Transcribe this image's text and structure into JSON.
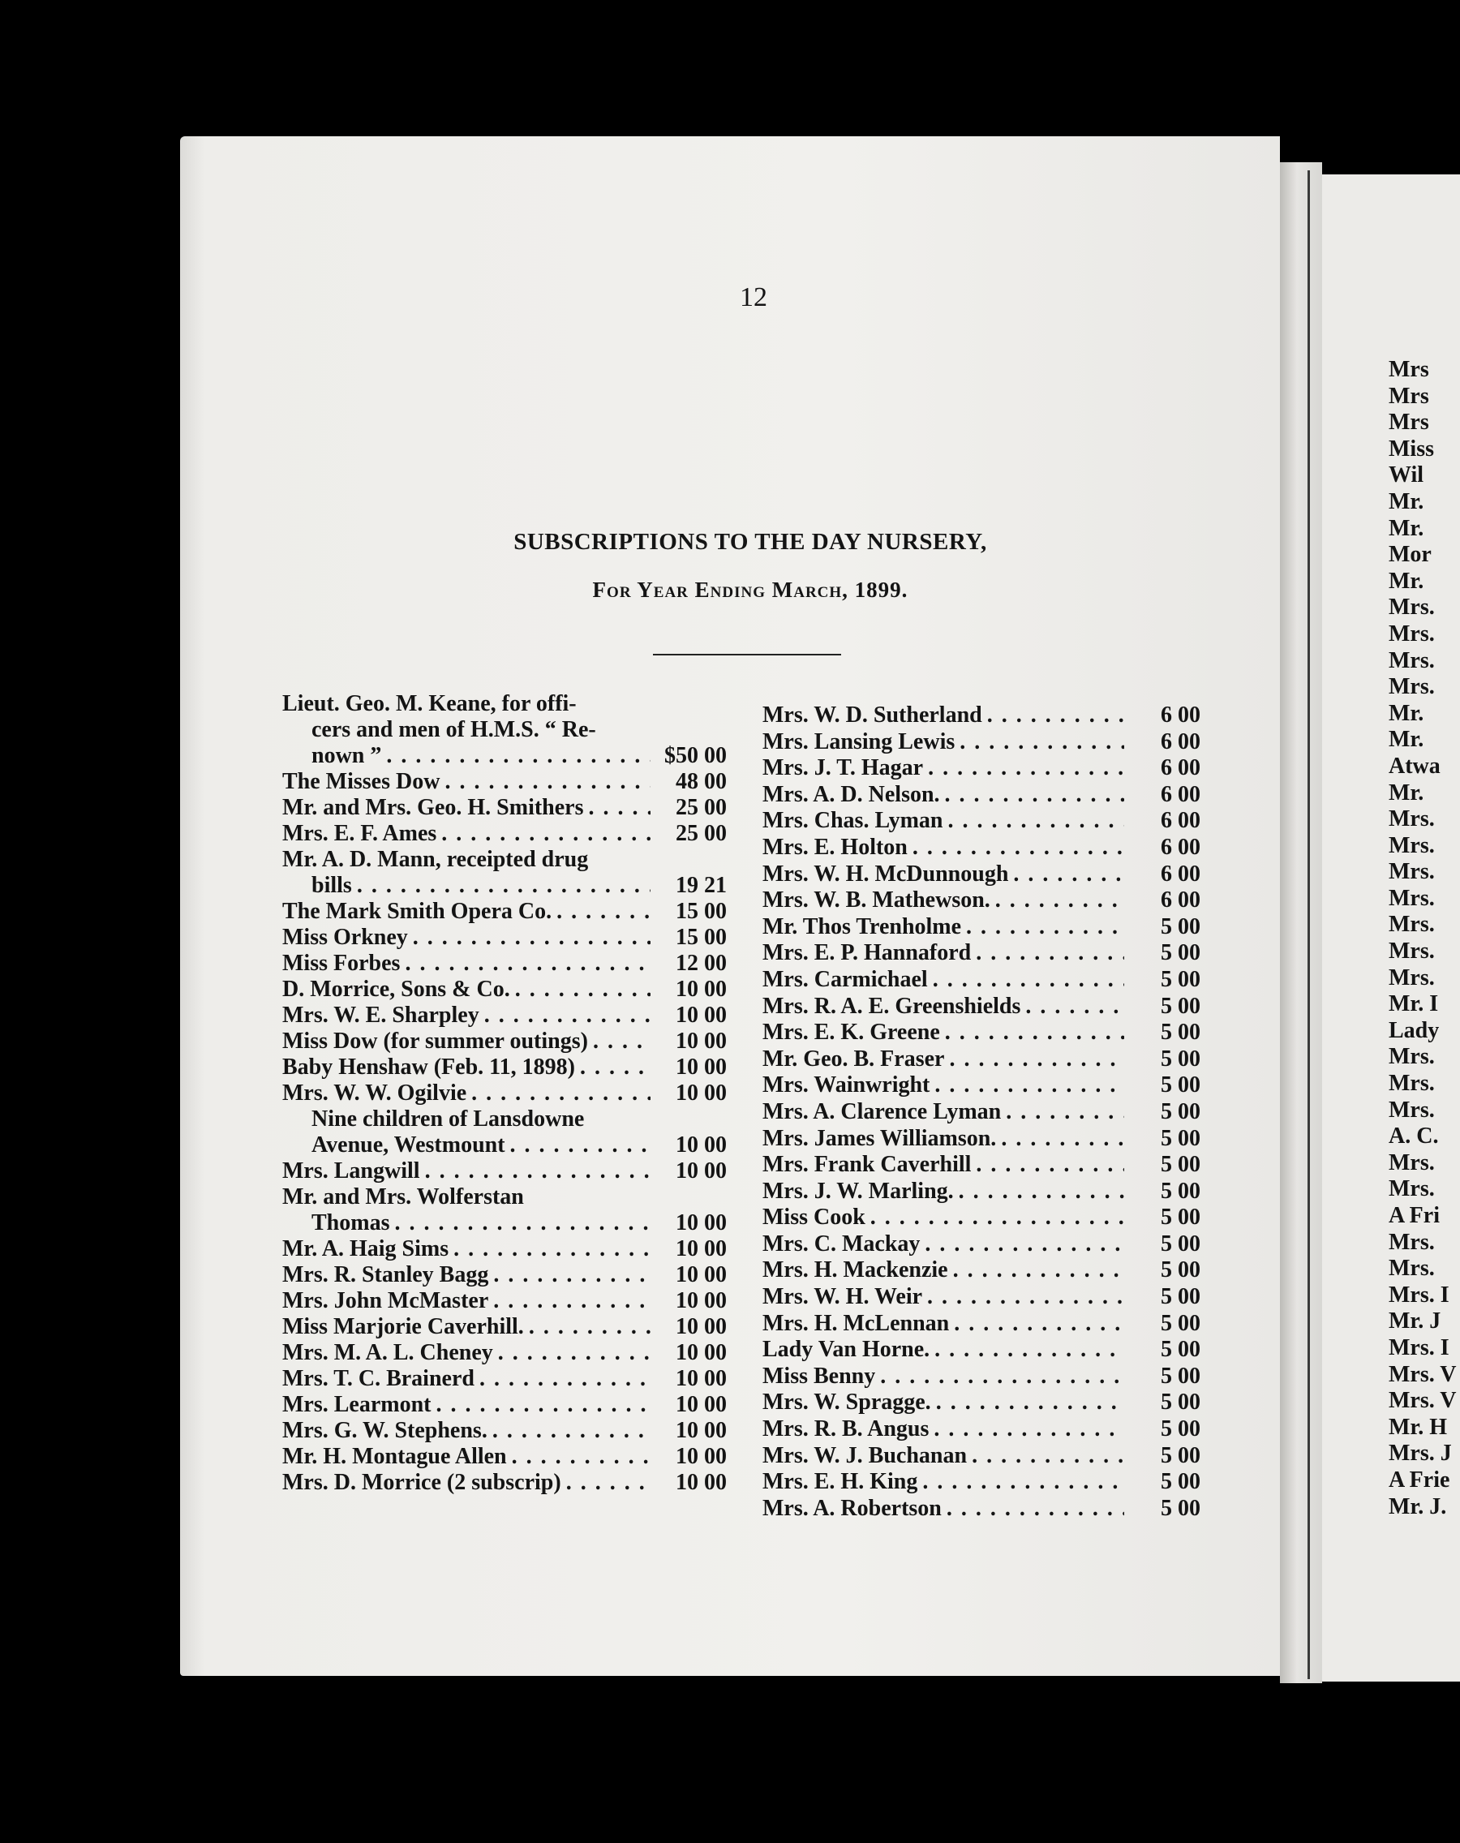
{
  "page_number": "12",
  "title": "SUBSCRIPTIONS TO THE DAY NURSERY,",
  "subtitle": "For Year Ending March, 1899.",
  "left_column": [
    {
      "lines": [
        "Lieut. Geo. M. Keane, for offi-",
        "cers and men of H.M.S. “ Re-",
        "nown ”"
      ],
      "amount": "$50 00"
    },
    {
      "lines": [
        "The Misses Dow"
      ],
      "amount": "48 00"
    },
    {
      "lines": [
        "Mr. and Mrs. Geo. H. Smithers"
      ],
      "amount": "25 00"
    },
    {
      "lines": [
        "Mrs. E. F. Ames"
      ],
      "amount": "25 00"
    },
    {
      "lines": [
        "Mr. A. D. Mann, receipted drug",
        "bills"
      ],
      "amount": "19 21"
    },
    {
      "lines": [
        "The Mark Smith Opera Co."
      ],
      "amount": "15 00"
    },
    {
      "lines": [
        "Miss Orkney"
      ],
      "amount": "15 00"
    },
    {
      "lines": [
        "Miss Forbes"
      ],
      "amount": "12 00"
    },
    {
      "lines": [
        "D. Morrice, Sons & Co."
      ],
      "amount": "10 00"
    },
    {
      "lines": [
        "Mrs. W. E. Sharpley"
      ],
      "amount": "10 00"
    },
    {
      "lines": [
        "Miss Dow (for summer outings)"
      ],
      "amount": "10 00"
    },
    {
      "lines": [
        "Baby Henshaw (Feb. 11, 1898)"
      ],
      "amount": "10 00"
    },
    {
      "lines": [
        "Mrs. W. W. Ogilvie"
      ],
      "amount": "10 00"
    },
    {
      "lines": [
        "Nine children of Lansdowne",
        "Avenue, Westmount"
      ],
      "amount": "10 00",
      "indented": true
    },
    {
      "lines": [
        "Mrs. Langwill"
      ],
      "amount": "10 00"
    },
    {
      "lines": [
        "Mr. and Mrs. Wolferstan",
        "Thomas"
      ],
      "amount": "10 00"
    },
    {
      "lines": [
        "Mr. A. Haig Sims"
      ],
      "amount": "10 00"
    },
    {
      "lines": [
        "Mrs. R. Stanley Bagg"
      ],
      "amount": "10 00"
    },
    {
      "lines": [
        "Mrs. John McMaster"
      ],
      "amount": "10 00"
    },
    {
      "lines": [
        "Miss Marjorie Caverhill."
      ],
      "amount": "10 00"
    },
    {
      "lines": [
        "Mrs. M. A. L. Cheney"
      ],
      "amount": "10 00"
    },
    {
      "lines": [
        "Mrs. T. C. Brainerd"
      ],
      "amount": "10 00"
    },
    {
      "lines": [
        "Mrs. Learmont"
      ],
      "amount": "10 00"
    },
    {
      "lines": [
        "Mrs. G. W. Stephens."
      ],
      "amount": "10 00"
    },
    {
      "lines": [
        "Mr. H. Montague Allen"
      ],
      "amount": "10 00"
    },
    {
      "lines": [
        "Mrs. D. Morrice (2 subscrip)"
      ],
      "amount": "10 00"
    }
  ],
  "right_column": [
    {
      "name": "Mrs. W. D. Sutherland",
      "amount": "6 00"
    },
    {
      "name": "Mrs. Lansing Lewis",
      "amount": "6 00"
    },
    {
      "name": "Mrs. J. T. Hagar",
      "amount": "6 00"
    },
    {
      "name": "Mrs. A. D. Nelson.",
      "amount": "6 00"
    },
    {
      "name": "Mrs. Chas. Lyman",
      "amount": "6 00"
    },
    {
      "name": "Mrs. E. Holton",
      "amount": "6 00"
    },
    {
      "name": "Mrs. W. H. McDunnough",
      "amount": "6 00"
    },
    {
      "name": "Mrs. W. B. Mathewson.",
      "amount": "6 00"
    },
    {
      "name": "Mr. Thos Trenholme",
      "amount": "5 00"
    },
    {
      "name": "Mrs. E. P. Hannaford",
      "amount": "5 00"
    },
    {
      "name": "Mrs. Carmichael",
      "amount": "5 00"
    },
    {
      "name": "Mrs. R. A. E. Greenshields",
      "amount": "5 00"
    },
    {
      "name": "Mrs. E. K. Greene",
      "amount": "5 00"
    },
    {
      "name": "Mr. Geo. B. Fraser",
      "amount": "5 00"
    },
    {
      "name": "Mrs. Wainwright",
      "amount": "5 00"
    },
    {
      "name": "Mrs. A. Clarence Lyman",
      "amount": "5 00"
    },
    {
      "name": "Mrs. James Williamson.",
      "amount": "5 00"
    },
    {
      "name": "Mrs. Frank Caverhill",
      "amount": "5 00"
    },
    {
      "name": "Mrs. J. W. Marling.",
      "amount": "5 00"
    },
    {
      "name": "Miss Cook",
      "amount": "5 00"
    },
    {
      "name": "Mrs. C. Mackay",
      "amount": "5 00"
    },
    {
      "name": "Mrs. H. Mackenzie",
      "amount": "5 00"
    },
    {
      "name": "Mrs. W. H. Weir",
      "amount": "5 00"
    },
    {
      "name": "Mrs. H. McLennan",
      "amount": "5 00"
    },
    {
      "name": "Lady Van Horne.",
      "amount": "5 00"
    },
    {
      "name": "Miss Benny",
      "amount": "5 00"
    },
    {
      "name": "Mrs. W. Spragge.",
      "amount": "5 00"
    },
    {
      "name": "Mrs. R. B. Angus",
      "amount": "5 00"
    },
    {
      "name": "Mrs. W. J. Buchanan",
      "amount": "5 00"
    },
    {
      "name": "Mrs. E. H. King",
      "amount": "5 00"
    },
    {
      "name": "Mrs. A. Robertson",
      "amount": "5 00"
    }
  ],
  "next_page_fragments": [
    "Mrs",
    "Mrs",
    "Mrs",
    "Miss",
    "Wil",
    "Mr.",
    "Mr.",
    "Mor",
    "Mr.",
    "Mrs.",
    "Mrs.",
    "Mrs.",
    "Mrs.",
    "Mr.",
    "Mr.",
    "Atwa",
    "Mr.",
    "Mrs.",
    "Mrs.",
    "Mrs.",
    "Mrs.",
    "Mrs.",
    "Mrs.",
    "Mrs.",
    "Mr. I",
    "Lady",
    "Mrs.",
    "Mrs.",
    "Mrs.",
    "A. C.",
    "Mrs.",
    "Mrs.",
    "A Fri",
    "Mrs.",
    "Mrs.",
    "Mrs. I",
    "Mr. J",
    "Mrs. I",
    "Mrs. V",
    "Mrs. V",
    "Mr. H",
    "Mrs. J",
    "A Frie",
    "Mr. J."
  ]
}
